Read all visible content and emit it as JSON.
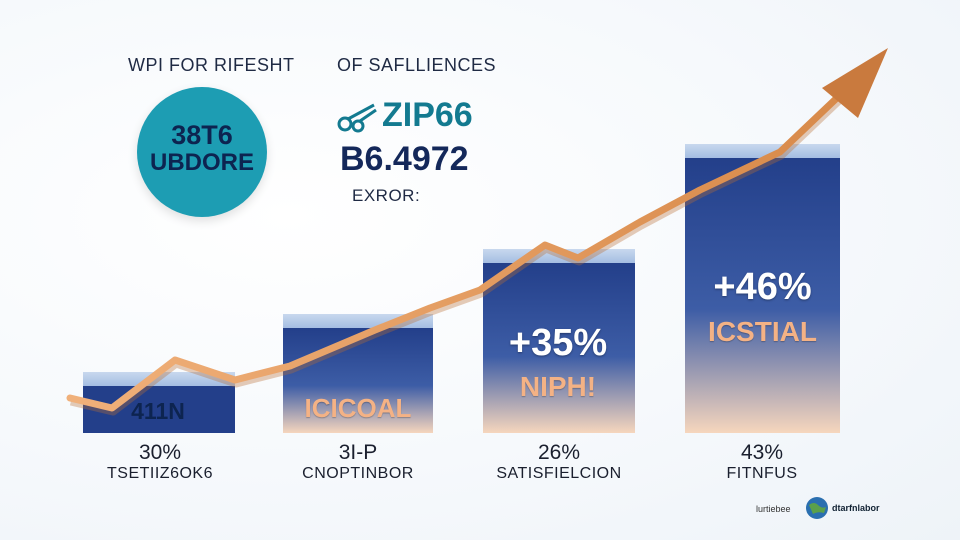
{
  "header": {
    "left_title": "WPI FOR RIFESHT",
    "right_title": "OF SAFLLIENCES"
  },
  "badge": {
    "line1": "38T6",
    "line2": "UBDORE"
  },
  "stats": {
    "line1": "ZIP66",
    "line2": "B6.4972",
    "label": "EXROR:"
  },
  "chart_data": {
    "type": "bar",
    "categories": [
      "TSETIIZ6OK6",
      "CNOPTINBOR",
      "SATISFIELCION",
      "FITNFUS"
    ],
    "series": [
      {
        "values": [
          30,
          34,
          26,
          43
        ]
      }
    ],
    "bar_inner_labels": [
      "411N",
      "ICICOAL",
      "+35%",
      "+46%"
    ],
    "bar_inner_sublabels": [
      "",
      "",
      "NIPH!",
      "ICSTIAL"
    ],
    "value_labels": [
      "30%",
      "3I-P",
      "26%",
      "43%"
    ],
    "trend_line": {
      "color": "#e8a062",
      "direction": "up"
    },
    "colors": {
      "bar_top": "#233f8a",
      "bar_bottom": "#f6d6bd",
      "arrow": "#d88a4a",
      "badge": "#1d9db3"
    }
  },
  "footer": {
    "brand_small": "lurtiebee",
    "brand_name": "dtarfnlabor"
  }
}
